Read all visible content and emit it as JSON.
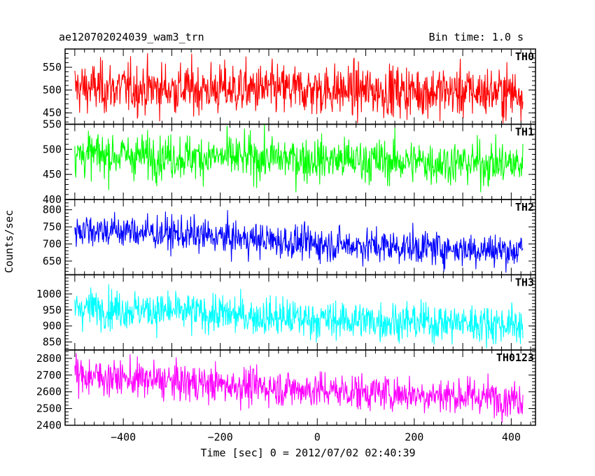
{
  "header": {
    "title": "ae120702024039_wam3_trn",
    "bin_time": "Bin time: 1.0 s"
  },
  "chart_data": {
    "type": "line",
    "xlabel": "Time [sec] 0 = 2012/07/02 02:40:39",
    "ylabel": "Counts/sec",
    "xlim": [
      -520,
      450
    ],
    "xticks": [
      -400,
      -200,
      0,
      200,
      400
    ],
    "x_start": -500,
    "x_end": 424,
    "x_step": 1,
    "panels": [
      {
        "name": "TH0",
        "color": "#ff0000",
        "ylim": [
          425,
          590
        ],
        "yticks": [
          450,
          500,
          550
        ],
        "trend": [
          [
            -500,
            505
          ],
          [
            0,
            500
          ],
          [
            424,
            495
          ]
        ],
        "noise_sd": 28
      },
      {
        "name": "TH1",
        "color": "#00ff00",
        "ylim": [
          400,
          550
        ],
        "yticks": [
          400,
          450,
          500,
          550
        ],
        "trend": [
          [
            -500,
            490
          ],
          [
            0,
            480
          ],
          [
            424,
            470
          ]
        ],
        "noise_sd": 22
      },
      {
        "name": "TH2",
        "color": "#0000ff",
        "ylim": [
          610,
          830
        ],
        "yticks": [
          650,
          700,
          750,
          800
        ],
        "trend": [
          [
            -500,
            745
          ],
          [
            -300,
            730
          ],
          [
            0,
            700
          ],
          [
            424,
            680
          ]
        ],
        "noise_sd": 25
      },
      {
        "name": "TH3",
        "color": "#00ffff",
        "ylim": [
          825,
          1060
        ],
        "yticks": [
          850,
          900,
          950,
          1000
        ],
        "trend": [
          [
            -500,
            960
          ],
          [
            -300,
            945
          ],
          [
            0,
            920
          ],
          [
            424,
            905
          ]
        ],
        "noise_sd": 30
      },
      {
        "name": "TH0123",
        "color": "#ff00ff",
        "ylim": [
          2400,
          2850
        ],
        "yticks": [
          2400,
          2500,
          2600,
          2700,
          2800
        ],
        "trend": [
          [
            -500,
            2700
          ],
          [
            -300,
            2660
          ],
          [
            0,
            2610
          ],
          [
            424,
            2560
          ]
        ],
        "noise_sd": 55
      }
    ]
  }
}
